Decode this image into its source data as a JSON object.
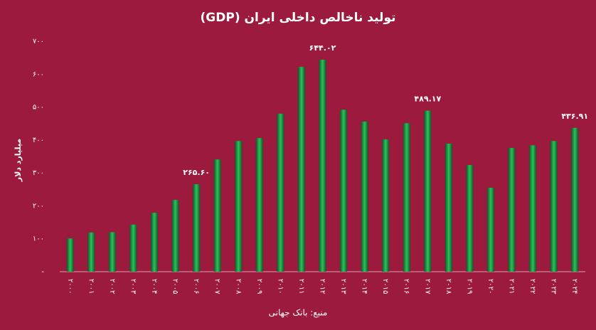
{
  "chart_data": {
    "type": "bar",
    "title": "تولید ناخالص داخلی ایران (GDP)",
    "y_label": "میلیارد دلار",
    "source": "منبع: بانک جهانی",
    "categories": [
      "۲۰۰۰",
      "۲۰۰۱",
      "۲۰۰۲",
      "۲۰۰۳",
      "۲۰۰۴",
      "۲۰۰۵",
      "۲۰۰۶",
      "۲۰۰۷",
      "۲۰۰۸",
      "۲۰۰۹",
      "۲۰۱۰",
      "۲۰۱۱",
      "۲۰۱۲",
      "۲۰۱۳",
      "۲۰۱۴",
      "۲۰۱۵",
      "۲۰۱۶",
      "۲۰۱۷",
      "۲۰۱۸",
      "۲۰۱۹",
      "۲۰۲۰",
      "۲۰۲۱",
      "۲۰۲۲",
      "۲۰۲۳",
      "۲۰۲۴"
    ],
    "values": [
      101,
      119,
      120,
      143,
      179,
      218,
      265.6,
      341,
      397,
      406,
      480,
      622,
      644.02,
      492,
      456,
      402,
      451,
      489.17,
      389,
      324,
      255,
      376,
      384,
      397,
      436.91
    ],
    "value_labels": [
      null,
      null,
      null,
      null,
      null,
      null,
      "۲۶۵.۶۰",
      null,
      null,
      null,
      null,
      null,
      "۶۴۴.۰۲",
      null,
      null,
      null,
      null,
      "۴۸۹.۱۷",
      null,
      null,
      null,
      null,
      null,
      null,
      "۴۳۶.۹۱"
    ],
    "color": "#1f9a4a",
    "ylim": [
      0,
      700
    ],
    "yticks": [
      {
        "value": 0,
        "label": "-"
      },
      {
        "value": 100,
        "label": "۱۰۰"
      },
      {
        "value": 200,
        "label": "۲۰۰"
      },
      {
        "value": 300,
        "label": "۳۰۰"
      },
      {
        "value": 400,
        "label": "۴۰۰"
      },
      {
        "value": 500,
        "label": "۵۰۰"
      },
      {
        "value": 600,
        "label": "۶۰۰"
      },
      {
        "value": 700,
        "label": "۷۰۰"
      }
    ],
    "grid": false
  }
}
